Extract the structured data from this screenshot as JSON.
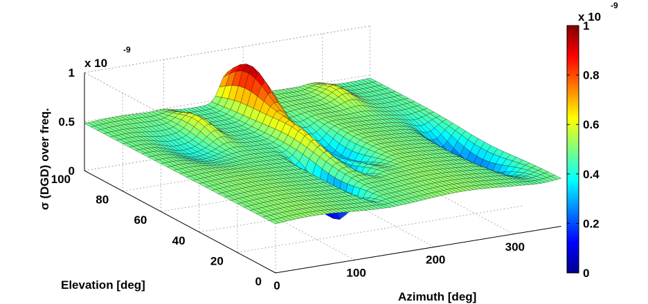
{
  "chart_data": {
    "type": "surface",
    "x": {
      "label": "Azimuth [deg]",
      "ticks": [
        0,
        100,
        200,
        300
      ],
      "range": [
        0,
        360
      ]
    },
    "y": {
      "label": "Elevation [deg]",
      "ticks": [
        0,
        20,
        40,
        60,
        80,
        100
      ],
      "range": [
        0,
        100
      ]
    },
    "z": {
      "label": "σ (DGD) over freq.",
      "tick_labels": [
        "0",
        "0.5",
        "1"
      ],
      "ticks": [
        0,
        0.5,
        1
      ],
      "range": [
        0,
        1
      ],
      "exponent_label": "x 10",
      "exponent_power": "-9"
    },
    "colorbar": {
      "tick_labels": [
        "0",
        "0.2",
        "0.4",
        "0.6",
        "0.8",
        "1"
      ],
      "range": [
        0,
        1
      ],
      "exponent_label": "x 10",
      "exponent_power": "-9",
      "colormap": "jet"
    },
    "surface_grid": {
      "azimuth_step_deg": 5,
      "elevation_step_deg": 3.3
    },
    "features": {
      "baseline_level": 0.5,
      "central_peak": {
        "azimuth": 180,
        "elevation": 100,
        "max_value": 1.0
      },
      "dip_minimum_value": 0.05
    },
    "grid": true
  }
}
